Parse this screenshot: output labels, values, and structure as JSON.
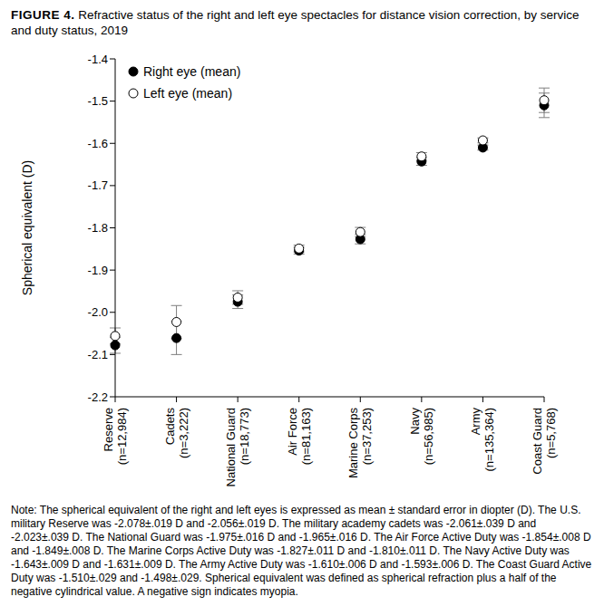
{
  "chart_data": {
    "type": "scatter",
    "title": "FIGURE 4. Refractive status of the right and left eye spectacles for distance vision correction, by service and duty status, 2019",
    "y_label": "Spherical equivalent (D)",
    "categories": [
      "Reserve (n=12,984)",
      "Cadets (n=3,222)",
      "National Guard (n=18,773)",
      "Air Force (n=81,163)",
      "Marine Corps (n=37,253)",
      "Navy (n=56,985)",
      "Army (n=135,364)",
      "Coast Guard (n=5,768)"
    ],
    "series": [
      {
        "name": "Right eye (mean)",
        "color": "#000000",
        "marker": "circle",
        "values": [
          -2.078,
          -2.061,
          -1.975,
          -1.854,
          -1.827,
          -1.643,
          -1.61,
          -1.51
        ],
        "error": [
          0.019,
          0.039,
          0.016,
          0.008,
          0.011,
          0.009,
          0.006,
          0.029
        ]
      },
      {
        "name": "Left eye (mean)",
        "color": "#000000",
        "marker": "open-circle",
        "values": [
          -2.056,
          -2.023,
          -1.965,
          -1.849,
          -1.81,
          -1.631,
          -1.593,
          -1.498
        ],
        "error": [
          0.019,
          0.039,
          0.016,
          0.008,
          0.011,
          0.009,
          0.006,
          0.029
        ]
      }
    ],
    "ylim": [
      -2.2,
      -1.4
    ],
    "yticks": [
      -2.2,
      -2.1,
      {
        "value": -2,
        "label": "-2.0"
      },
      -1.9,
      -1.8,
      -1.7,
      -1.6,
      -1.5,
      -1.4
    ],
    "legend": "upper left",
    "grid": false,
    "note": "Note: The spherical equivalent of the right and left eyes is expressed as mean ± standard error in diopter (D). The U.S. military Reserve was -2.078±.019 D and -2.056±.019 D. The military academy cadets was -2.061±.039 D and -2.023±.039 D. The National Guard was -1.975±.016 D and -1.965±.016 D. The Air Force Active Duty was -1.854±.008 D and -1.849±.008 D. The Marine Corps Active Duty was -1.827±.011 D and -1.810±.011 D. The Navy Active Duty was -1.643±.009 D and -1.631±.009 D. The Army Active Duty was -1.610±.006 D and -1.593±.006 D. The Coast Guard Active Duty was -1.510±.029 and -1.498±.029. Spherical equivalent was defined as spherical refraction plus a half of the negative cylindrical value. A negative sign indicates myopia."
  }
}
